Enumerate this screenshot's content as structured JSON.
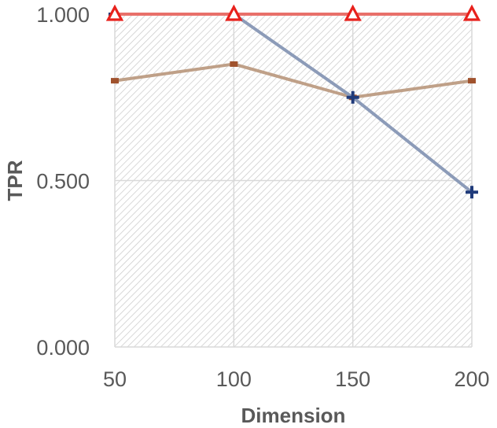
{
  "chart_data": {
    "type": "line",
    "title": "",
    "xlabel": "Dimension",
    "ylabel": "TPR",
    "x": [
      50,
      100,
      150,
      200
    ],
    "x_tick_labels": [
      "50",
      "100",
      "150",
      "200"
    ],
    "ylim": [
      0,
      1
    ],
    "y_ticks": [
      0,
      0.5,
      1
    ],
    "y_tick_labels": [
      "0.000",
      "0.500",
      "1.000"
    ],
    "grid": true,
    "legend": "none",
    "series": [
      {
        "values": [
          0.8,
          0.85,
          0.75,
          0.8
        ],
        "color": "#bfa088",
        "marker": "dash",
        "marker_color": "#a0522d"
      },
      {
        "values": [
          1.0,
          1.0,
          0.75,
          0.465
        ],
        "color": "#8c9bb8",
        "marker": "plus",
        "marker_color": "#1f3a7a"
      },
      {
        "values": [
          1.0,
          1.0,
          1.0,
          1.0
        ],
        "color": "#e8706a",
        "marker": "triangle",
        "marker_color": "#e8211c"
      }
    ]
  }
}
